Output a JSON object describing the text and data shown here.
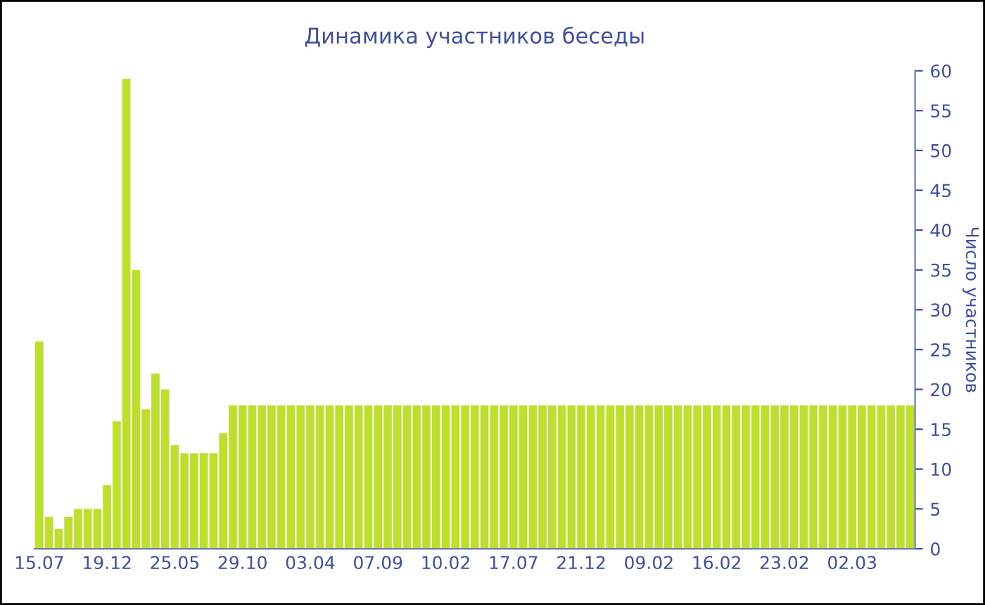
{
  "chart_data": {
    "type": "bar",
    "title": "Динамика участников беседы",
    "ylabel": "Число участников",
    "categories": [
      "15.07",
      null,
      null,
      null,
      null,
      null,
      null,
      "19.12",
      null,
      null,
      null,
      null,
      null,
      null,
      "25.05",
      null,
      null,
      null,
      null,
      null,
      null,
      "29.10",
      null,
      null,
      null,
      null,
      null,
      null,
      "03.04",
      null,
      null,
      null,
      null,
      null,
      null,
      "07.09",
      null,
      null,
      null,
      null,
      null,
      null,
      "10.02",
      null,
      null,
      null,
      null,
      null,
      null,
      "17.07",
      null,
      null,
      null,
      null,
      null,
      null,
      "21.12",
      null,
      null,
      null,
      null,
      null,
      null,
      "09.02",
      null,
      null,
      null,
      null,
      null,
      null,
      "16.02",
      null,
      null,
      null,
      null,
      null,
      null,
      "23.02",
      null,
      null,
      null,
      null,
      null,
      null,
      "02.03",
      null,
      null,
      null,
      null,
      null,
      null
    ],
    "values": [
      26,
      4,
      2.5,
      4,
      5,
      5,
      5,
      8,
      16,
      59,
      35,
      17.5,
      22,
      20,
      13,
      12,
      12,
      12,
      12,
      14.5,
      18,
      18,
      18,
      18,
      18,
      18,
      18,
      18,
      18,
      18,
      18,
      18,
      18,
      18,
      18,
      18,
      18,
      18,
      18,
      18,
      18,
      18,
      18,
      18,
      18,
      18,
      18,
      18,
      18,
      18,
      18,
      18,
      18,
      18,
      18,
      18,
      18,
      18,
      18,
      18,
      18,
      18,
      18,
      18,
      18,
      18,
      18,
      18,
      18,
      18,
      18,
      18,
      18,
      18,
      18,
      18,
      18,
      18,
      18,
      18,
      18,
      18,
      18,
      18,
      18,
      18,
      18,
      18,
      18,
      18,
      18
    ],
    "color": "#bde02f",
    "ylim": [
      0,
      60
    ],
    "yticks": [
      0,
      5,
      10,
      15,
      20,
      25,
      30,
      35,
      40,
      45,
      50,
      55,
      60
    ]
  }
}
